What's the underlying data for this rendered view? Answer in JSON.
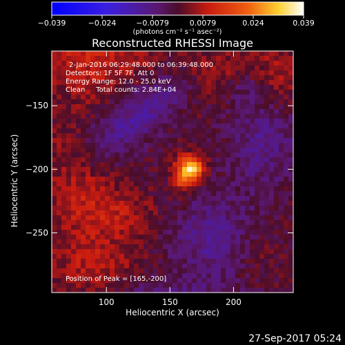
{
  "colorbar": {
    "ticks": [
      "−0.039",
      "−0.024",
      "−0.0079",
      "0.0079",
      "0.024",
      "0.039"
    ],
    "units": "(photons cm⁻² s⁻¹ asec⁻²)"
  },
  "chart_data": {
    "type": "heatmap",
    "title": "Reconstructed RHESSI Image",
    "xlabel": "Heliocentric X (arcsec)",
    "ylabel": "Heliocentric Y (arcsec)",
    "xlim": [
      57,
      247
    ],
    "ylim": [
      -297,
      -107
    ],
    "xticks": [
      100,
      150,
      200
    ],
    "yticks": [
      -150,
      -200,
      -250
    ],
    "color_range": [
      -0.039,
      0.039
    ],
    "colormap": "blue-purple-red-orange-yellow-white",
    "grid": false,
    "peak": [
      165,
      -200
    ],
    "annotations": [
      "2-Jan-2016 06:29:48.000 to 06:39:48.000",
      "Detectors: 1F 5F 7F, Att 0",
      "Energy Range: 12.0 - 25.0 keV",
      "Clean     Total counts: 2.84E+04"
    ],
    "peak_label": "Position of Peak = [165,-200]"
  },
  "footer": {
    "date": "27-Sep-2017 05:24"
  },
  "colors": {
    "background": "#000000",
    "text": "#ffffff"
  }
}
